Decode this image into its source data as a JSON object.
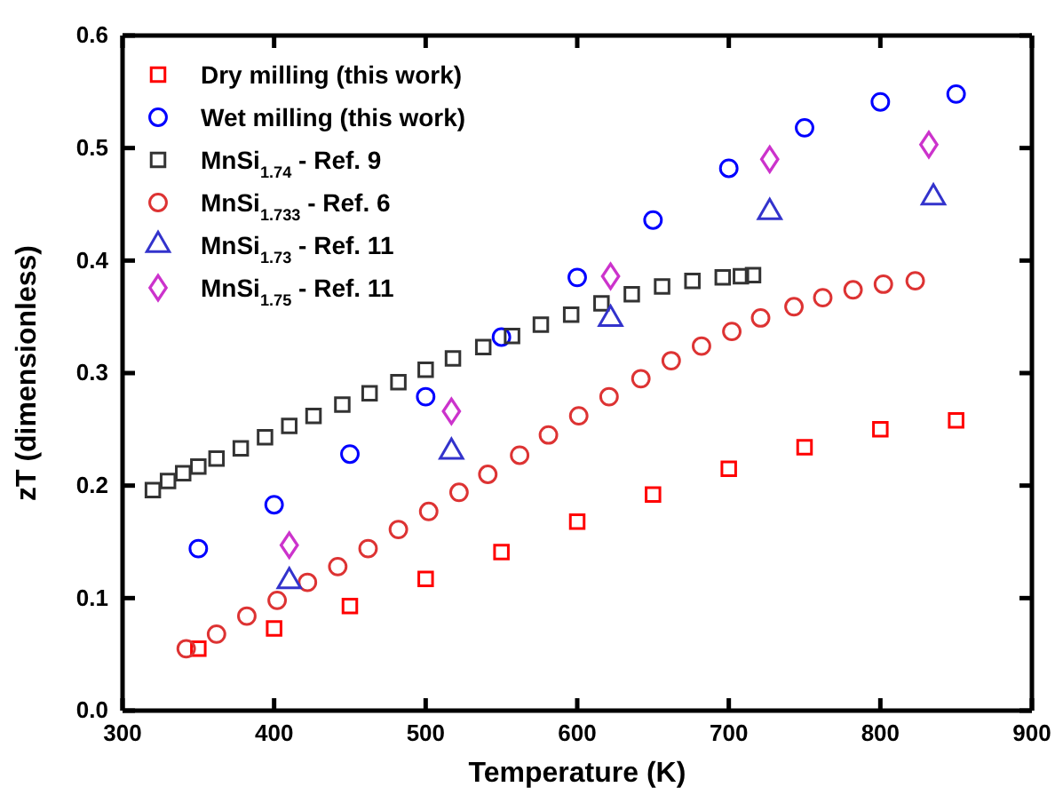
{
  "chart_data": {
    "type": "scatter",
    "xlabel": "Temperature (K)",
    "ylabel": "zT (dimensionless)",
    "xlim": [
      300,
      900
    ],
    "xticks": [
      300,
      400,
      500,
      600,
      700,
      800,
      900
    ],
    "ylim": [
      0,
      0.6
    ],
    "yticks": [
      {
        "value": 0,
        "label": "0.0"
      },
      {
        "value": 0.1,
        "label": "0.1"
      },
      {
        "value": 0.2,
        "label": "0.2"
      },
      {
        "value": 0.3,
        "label": "0.3"
      },
      {
        "value": 0.4,
        "label": "0.4"
      },
      {
        "value": 0.5,
        "label": "0.5"
      },
      {
        "value": 0.6,
        "label": "0.6"
      }
    ],
    "grid": false,
    "legend": "top left",
    "series": [
      {
        "name": "Dry milling (this work)",
        "color": "#ff0000",
        "marker": "square",
        "x": [
          350,
          400,
          450,
          500,
          550,
          600,
          650,
          700,
          750,
          800,
          850
        ],
        "values": [
          0.055,
          0.073,
          0.093,
          0.117,
          0.141,
          0.168,
          0.192,
          0.215,
          0.234,
          0.25,
          0.258
        ]
      },
      {
        "name": "Wet milling (this work)",
        "color": "#0000ff",
        "marker": "circle",
        "x": [
          350,
          400,
          450,
          500,
          550,
          600,
          650,
          700,
          750,
          800,
          850
        ],
        "values": [
          0.144,
          0.183,
          0.228,
          0.279,
          0.332,
          0.385,
          0.436,
          0.482,
          0.518,
          0.541,
          0.548
        ]
      },
      {
        "name": "MnSi$_{1.74}$ - Ref. 9",
        "color": "#333333",
        "marker": "square",
        "x": [
          320,
          330,
          340,
          350,
          362,
          378,
          394,
          410,
          426,
          445,
          463,
          482,
          500,
          518,
          538,
          557,
          576,
          596,
          616,
          636,
          656,
          676,
          696,
          708,
          716
        ],
        "values": [
          0.196,
          0.204,
          0.211,
          0.217,
          0.224,
          0.233,
          0.243,
          0.253,
          0.262,
          0.272,
          0.282,
          0.292,
          0.303,
          0.313,
          0.323,
          0.333,
          0.343,
          0.352,
          0.362,
          0.37,
          0.377,
          0.382,
          0.385,
          0.386,
          0.387
        ]
      },
      {
        "name": "MnSi$_{1.733}$ - Ref. 6",
        "color": "#dd3333",
        "marker": "circle",
        "x": [
          342,
          362,
          382,
          402,
          422,
          442,
          462,
          482,
          502,
          522,
          541,
          562,
          581,
          601,
          621,
          642,
          662,
          682,
          702,
          721,
          743,
          762,
          782,
          802,
          823
        ],
        "values": [
          0.055,
          0.068,
          0.084,
          0.098,
          0.114,
          0.128,
          0.144,
          0.161,
          0.177,
          0.194,
          0.21,
          0.227,
          0.245,
          0.262,
          0.279,
          0.295,
          0.311,
          0.324,
          0.337,
          0.349,
          0.359,
          0.367,
          0.374,
          0.379,
          0.382
        ]
      },
      {
        "name": "MnSi$_{1.73}$ - Ref. 11",
        "color": "#3333cc",
        "marker": "triangle",
        "x": [
          410,
          517,
          622,
          727,
          835
        ],
        "values": [
          0.115,
          0.23,
          0.348,
          0.443,
          0.456
        ]
      },
      {
        "name": "MnSi$_{1.75}$ - Ref. 11",
        "color": "#cc33cc",
        "marker": "diamond",
        "x": [
          410,
          517,
          622,
          727,
          832
        ],
        "values": [
          0.147,
          0.266,
          0.386,
          0.49,
          0.503
        ]
      }
    ]
  }
}
